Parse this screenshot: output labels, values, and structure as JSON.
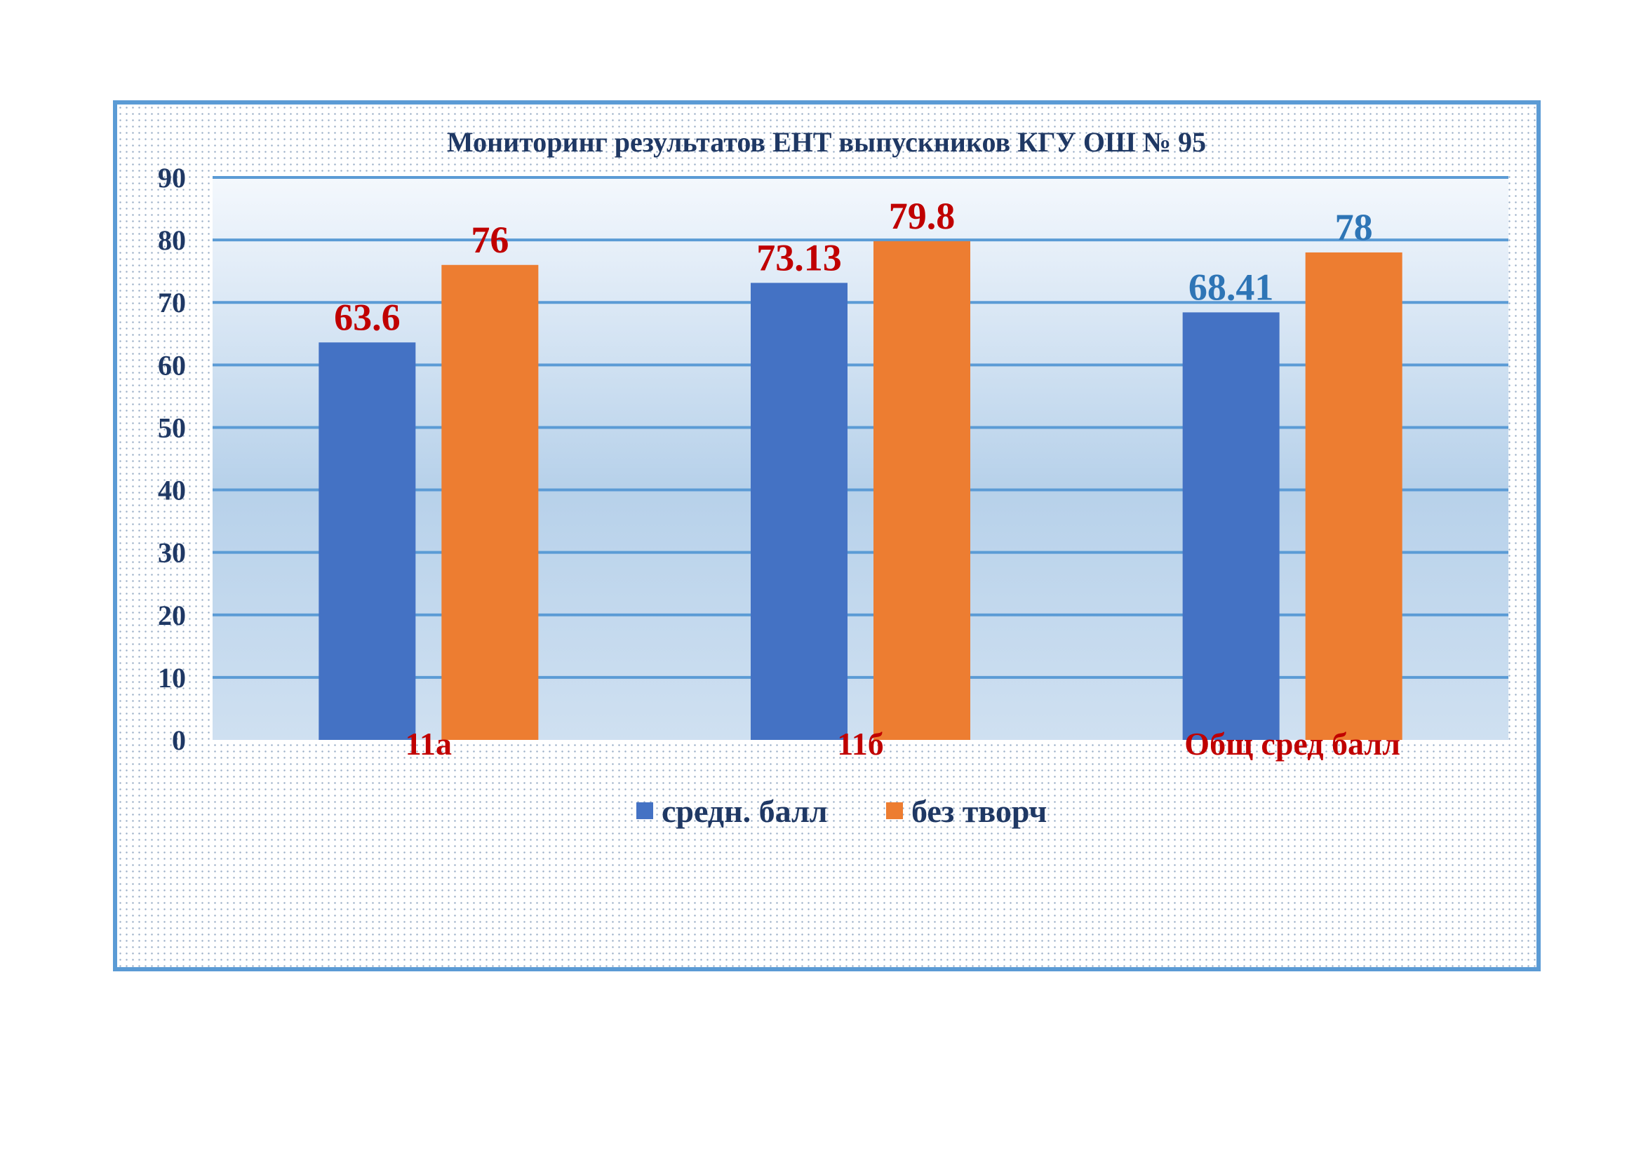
{
  "chart_data": {
    "type": "bar",
    "title": "Мониторинг результатов ЕНТ выпускников КГУ ОШ № 95",
    "categories": [
      "11а",
      "11б",
      "Общ сред балл"
    ],
    "series": [
      {
        "name": "средн. балл",
        "color": "#4472c4",
        "values": [
          63.6,
          73.13,
          68.41
        ],
        "labels": [
          "63.6",
          "73.13",
          "68.41"
        ],
        "label_colors": [
          "#c00000",
          "#c00000",
          "#2e75b6"
        ]
      },
      {
        "name": "без творч",
        "color": "#ed7d31",
        "values": [
          76,
          79.8,
          78
        ],
        "labels": [
          "76",
          "79.8",
          "78"
        ],
        "label_colors": [
          "#c00000",
          "#c00000",
          "#2e75b6"
        ]
      }
    ],
    "ylim": [
      0,
      90
    ],
    "yticks": [
      "0",
      "10",
      "20",
      "30",
      "40",
      "50",
      "60",
      "70",
      "80",
      "90"
    ],
    "grid": true,
    "legend_position": "bottom",
    "xlabel": "",
    "ylabel": ""
  }
}
